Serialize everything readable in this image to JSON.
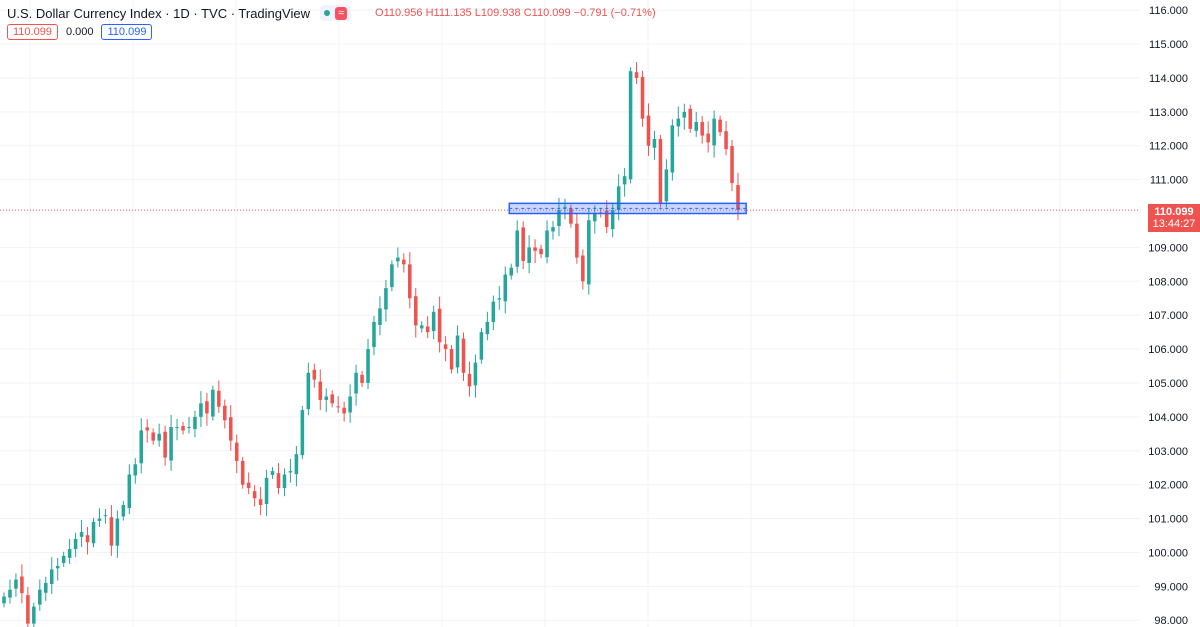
{
  "header": {
    "symbol_title": "U.S. Dollar Currency Index · 1D · TVC · TradingView",
    "open_label": "O",
    "open": "110.956",
    "high_label": "H",
    "high": "111.135",
    "low_label": "L",
    "low": "109.938",
    "close_label": "C",
    "close": "110.099",
    "change": "−0.791 (−0.71%)"
  },
  "indicator_row": {
    "value_left": "110.099",
    "zero": "0.000",
    "value_right": "110.099"
  },
  "price_tag": {
    "price": "110.099",
    "countdown": "13:44:27"
  },
  "colors": {
    "up": "#26a69a",
    "down": "#ef5350",
    "support_box": "#2962ff",
    "grid": "#f0f3fa"
  },
  "chart_data": {
    "type": "candlestick",
    "y_axis_ticks": [
      "116.000",
      "115.000",
      "114.000",
      "113.000",
      "112.000",
      "111.000",
      "109.000",
      "108.000",
      "107.000",
      "106.000",
      "105.000",
      "104.000",
      "103.000",
      "102.000",
      "101.000",
      "100.000",
      "99.000",
      "98.000"
    ],
    "ylim": [
      97.8,
      116.3
    ],
    "last_price": 110.099,
    "support_zone": {
      "from_index": 85,
      "to_index": 118,
      "low": 110.0,
      "high": 110.3
    },
    "closes": [
      98.7,
      98.9,
      99.2,
      98.8,
      97.9,
      98.4,
      98.9,
      99.1,
      99.5,
      99.6,
      99.9,
      100.1,
      100.4,
      100.6,
      100.3,
      100.9,
      101.0,
      101.1,
      100.2,
      101.0,
      101.4,
      102.3,
      102.6,
      103.6,
      103.6,
      103.3,
      103.5,
      102.8,
      103.7,
      103.7,
      103.6,
      103.7,
      104.0,
      104.4,
      104.1,
      104.8,
      104.3,
      103.9,
      103.3,
      102.7,
      102.0,
      101.9,
      101.6,
      101.4,
      102.2,
      102.4,
      101.9,
      102.3,
      102.4,
      102.9,
      104.2,
      105.3,
      105.1,
      104.5,
      104.6,
      104.4,
      104.3,
      104.1,
      104.6,
      105.3,
      105.0,
      106.0,
      106.8,
      107.2,
      107.8,
      108.5,
      108.7,
      108.5,
      107.5,
      106.7,
      106.7,
      106.5,
      107.1,
      106.2,
      106.0,
      105.4,
      106.4,
      105.3,
      104.9,
      105.6,
      106.5,
      106.8,
      107.4,
      107.5,
      108.2,
      108.4,
      109.5,
      108.6,
      109.0,
      108.9,
      108.8,
      109.5,
      109.6,
      110.1,
      110.2,
      109.7,
      108.7,
      108.0,
      109.8,
      110.0,
      110.0,
      109.6,
      110.1,
      110.8,
      111.1,
      114.2,
      114.0,
      112.8,
      112.0,
      112.2,
      110.3,
      111.3,
      112.6,
      112.8,
      113.0,
      112.5,
      112.7,
      112.3,
      112.1,
      112.8,
      112.4,
      111.9,
      110.9,
      110.1
    ],
    "x_label": "",
    "y_label": ""
  }
}
